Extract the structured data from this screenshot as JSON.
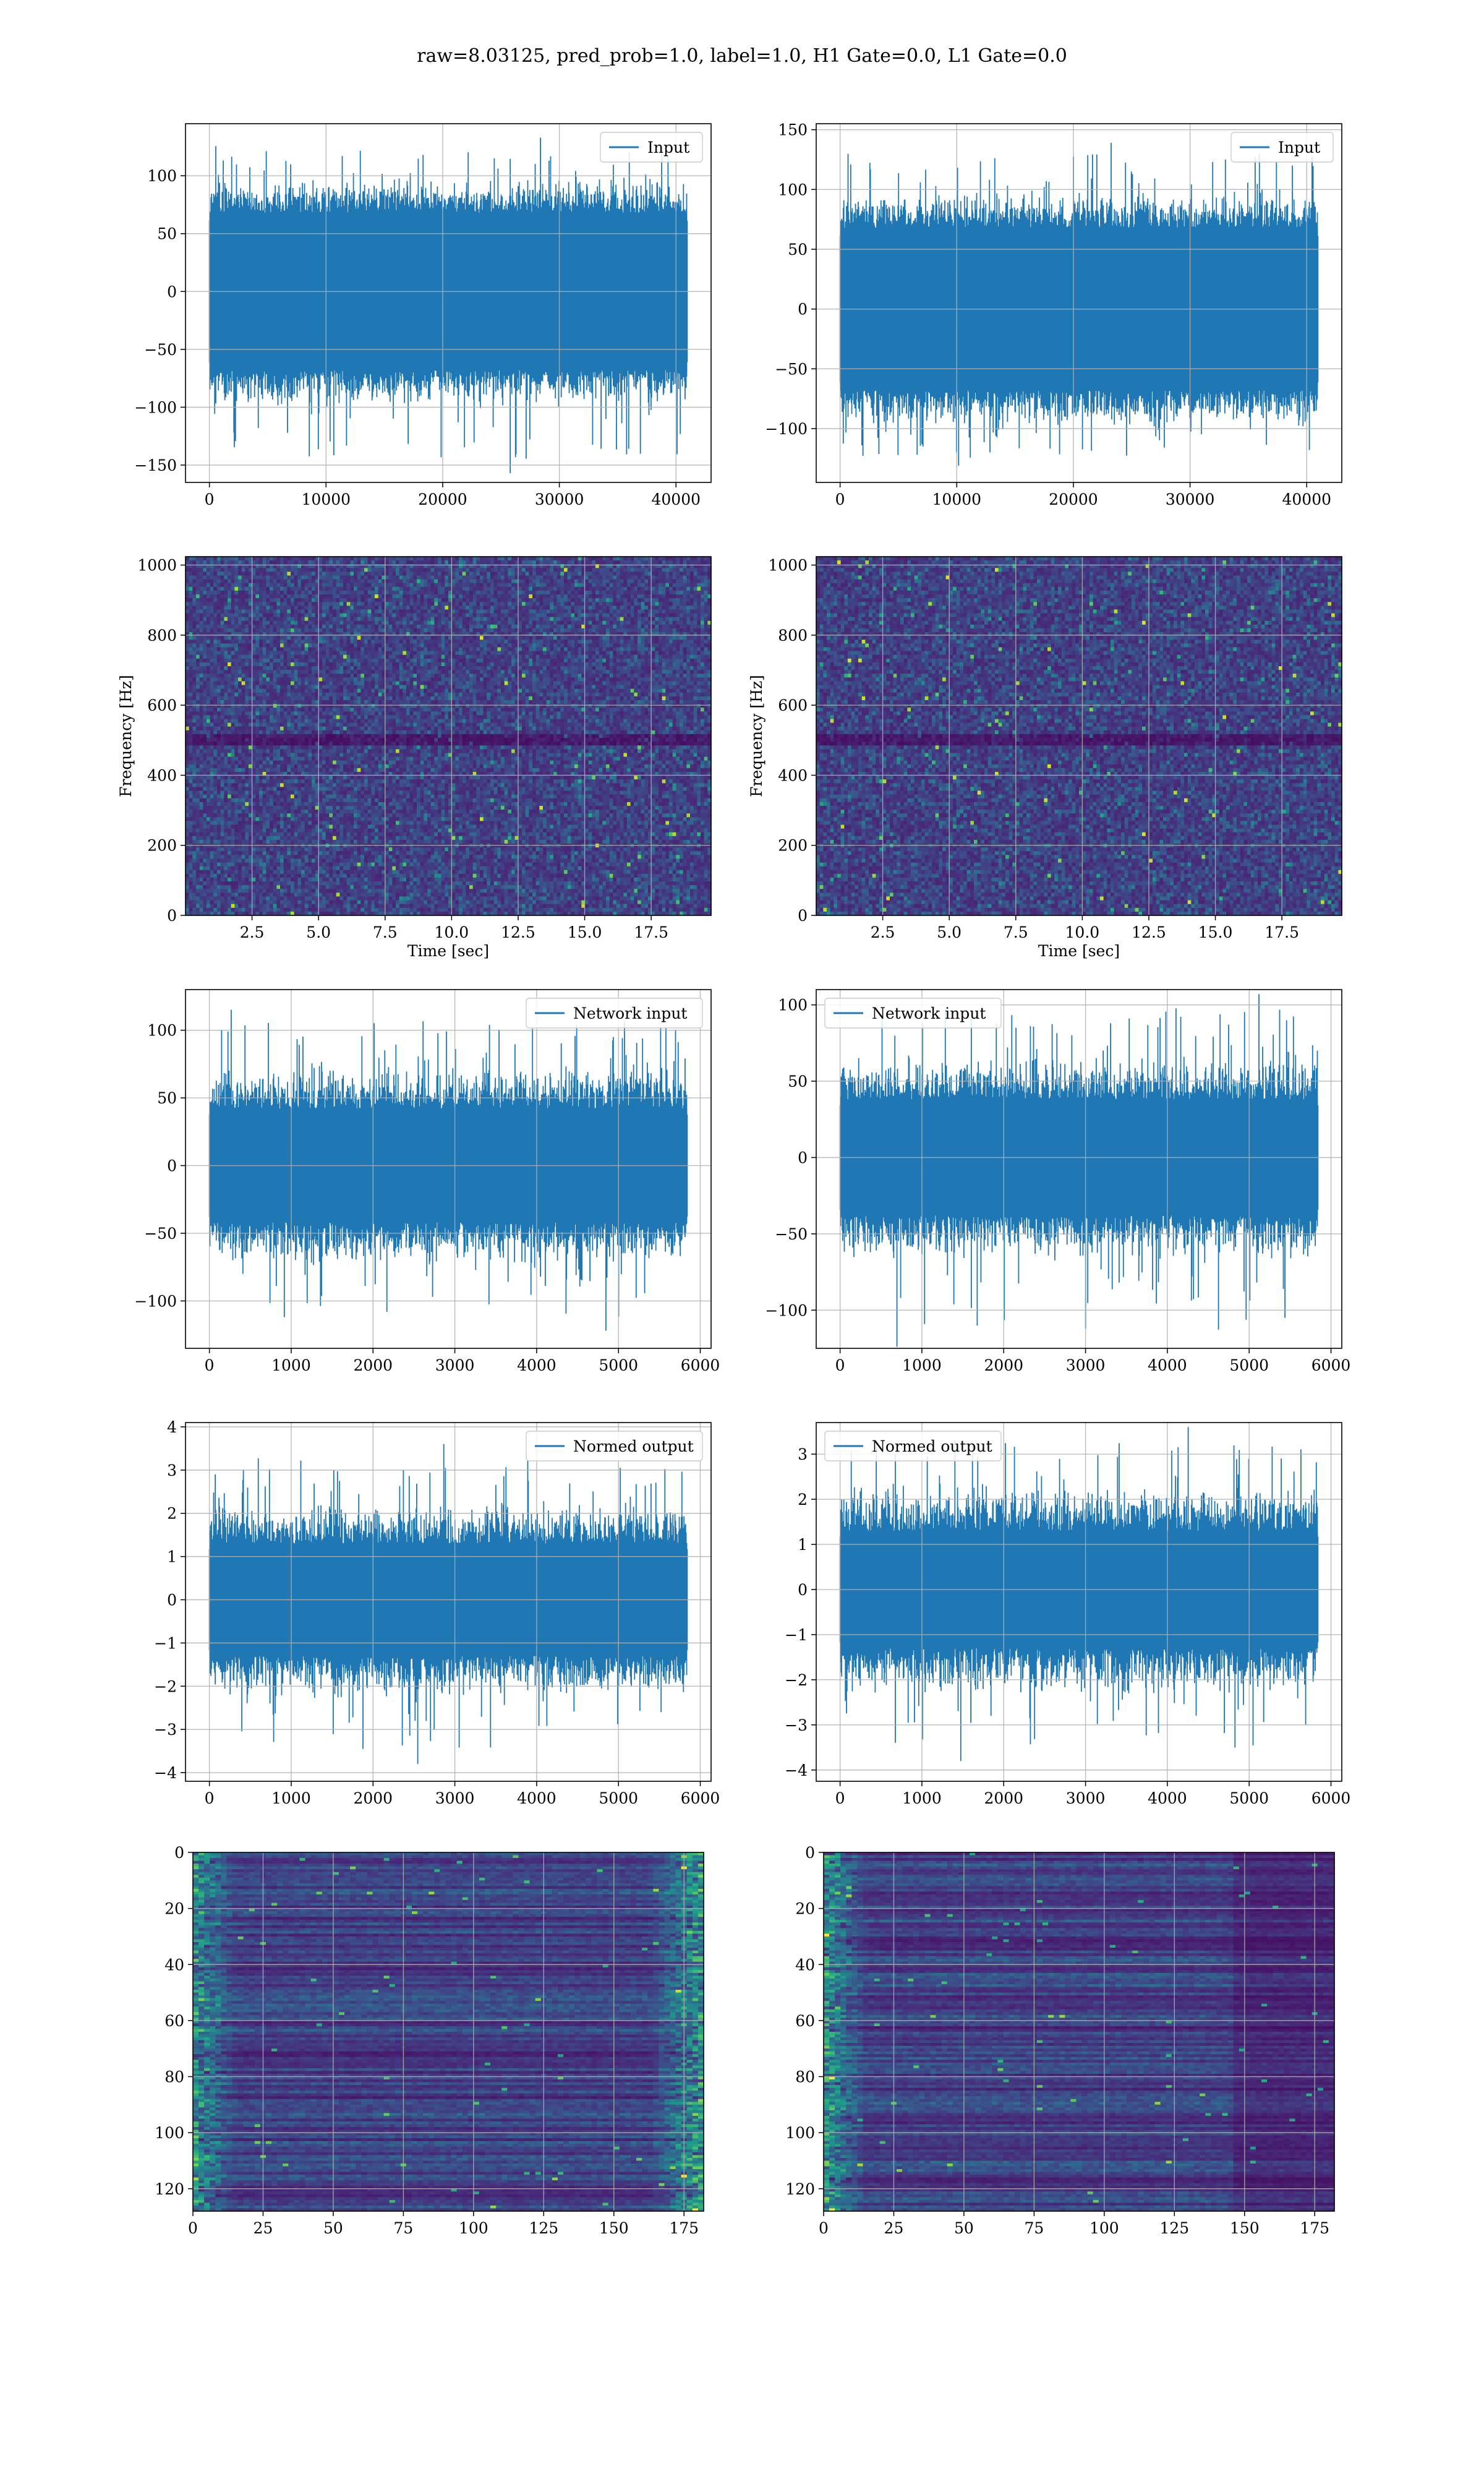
{
  "figure": {
    "title": "raw=8.03125, pred_prob=1.0, label=1.0, H1 Gate=0.0, L1 Gate=0.0"
  },
  "colors": {
    "line": "#1f77b4",
    "grid": "#b0b0b0",
    "viridis": [
      "#440154",
      "#482878",
      "#3e4989",
      "#31688e",
      "#26828e",
      "#1f9e89",
      "#35b779",
      "#6ece58",
      "#b5de2b",
      "#fde725"
    ]
  },
  "chart_data": [
    {
      "id": "h1-input",
      "type": "line",
      "legend": "Input",
      "legend_loc": "upper right",
      "xlim": [
        -2048,
        43008
      ],
      "ylim": [
        -165,
        145
      ],
      "xticks": [
        0,
        10000,
        20000,
        30000,
        40000
      ],
      "yticks": [
        -150,
        -100,
        -50,
        0,
        50,
        100
      ],
      "xlabel": "",
      "ylabel": "",
      "grid": true,
      "series": [
        {
          "x_range": [
            0,
            40960
          ],
          "core_band": [
            -68,
            68
          ],
          "typical_peak": [
            -100,
            100
          ],
          "min": -157,
          "max": 133
        }
      ]
    },
    {
      "id": "l1-input",
      "type": "line",
      "legend": "Input",
      "legend_loc": "upper right",
      "xlim": [
        -2048,
        43008
      ],
      "ylim": [
        -145,
        155
      ],
      "xticks": [
        0,
        10000,
        20000,
        30000,
        40000
      ],
      "yticks": [
        -100,
        -50,
        0,
        50,
        100,
        150
      ],
      "xlabel": "",
      "ylabel": "",
      "grid": true,
      "series": [
        {
          "x_range": [
            0,
            40960
          ],
          "core_band": [
            -68,
            68
          ],
          "typical_peak": [
            -100,
            100
          ],
          "min": -131,
          "max": 139
        }
      ]
    },
    {
      "id": "h1-spectrogram",
      "type": "heatmap",
      "xlabel": "Time [sec]",
      "ylabel": "Frequency [Hz]",
      "xlim": [
        0,
        19.75
      ],
      "ylim": [
        0,
        1024
      ],
      "xticks": [
        2.5,
        5.0,
        7.5,
        10.0,
        12.5,
        15.0,
        17.5
      ],
      "xtick_labels": [
        "2.5",
        "5.0",
        "7.5",
        "10.0",
        "12.5",
        "15.0",
        "17.5"
      ],
      "yticks": [
        0,
        200,
        400,
        600,
        800,
        1000
      ],
      "grid": true,
      "colormap": "viridis",
      "dark_band_hz": [
        490,
        520
      ]
    },
    {
      "id": "l1-spectrogram",
      "type": "heatmap",
      "xlabel": "Time [sec]",
      "ylabel": "Frequency [Hz]",
      "xlim": [
        0,
        19.75
      ],
      "ylim": [
        0,
        1024
      ],
      "xticks": [
        2.5,
        5.0,
        7.5,
        10.0,
        12.5,
        15.0,
        17.5
      ],
      "xtick_labels": [
        "2.5",
        "5.0",
        "7.5",
        "10.0",
        "12.5",
        "15.0",
        "17.5"
      ],
      "yticks": [
        0,
        200,
        400,
        600,
        800,
        1000
      ],
      "grid": true,
      "colormap": "viridis",
      "dark_band_hz": [
        490,
        520
      ]
    },
    {
      "id": "h1-network-input",
      "type": "line",
      "legend": "Network input",
      "legend_loc": "upper right",
      "xlim": [
        -292,
        6132
      ],
      "ylim": [
        -135,
        130
      ],
      "xticks": [
        0,
        1000,
        2000,
        3000,
        4000,
        5000,
        6000
      ],
      "yticks": [
        -100,
        -50,
        0,
        50,
        100
      ],
      "xlabel": "",
      "ylabel": "",
      "grid": true,
      "series": [
        {
          "x_range": [
            0,
            5840
          ],
          "core_band": [
            -42,
            42
          ],
          "typical_peak": [
            -75,
            75
          ],
          "min": -122,
          "max": 115
        }
      ]
    },
    {
      "id": "l1-network-input",
      "type": "line",
      "legend": "Network input",
      "legend_loc": "upper left",
      "xlim": [
        -292,
        6132
      ],
      "ylim": [
        -125,
        110
      ],
      "xticks": [
        0,
        1000,
        2000,
        3000,
        4000,
        5000,
        6000
      ],
      "yticks": [
        -100,
        -50,
        0,
        50,
        100
      ],
      "xlabel": "",
      "ylabel": "",
      "grid": true,
      "series": [
        {
          "x_range": [
            0,
            5840
          ],
          "core_band": [
            -38,
            38
          ],
          "typical_peak": [
            -68,
            68
          ],
          "min": -124,
          "max": 107
        }
      ]
    },
    {
      "id": "h1-normed-output",
      "type": "line",
      "legend": "Normed output",
      "legend_loc": "upper right",
      "xlim": [
        -292,
        6132
      ],
      "ylim": [
        -4.2,
        4.1
      ],
      "xticks": [
        0,
        1000,
        2000,
        3000,
        4000,
        5000,
        6000
      ],
      "yticks": [
        -4,
        -3,
        -2,
        -1,
        0,
        1,
        2,
        3,
        4
      ],
      "xlabel": "",
      "ylabel": "",
      "grid": true,
      "series": [
        {
          "x_range": [
            0,
            5840
          ],
          "core_band": [
            -1.3,
            1.3
          ],
          "typical_peak": [
            -2.3,
            2.3
          ],
          "min": -3.8,
          "max": 3.6
        }
      ]
    },
    {
      "id": "l1-normed-output",
      "type": "line",
      "legend": "Normed output",
      "legend_loc": "upper left",
      "xlim": [
        -292,
        6132
      ],
      "ylim": [
        -4.25,
        3.7
      ],
      "xticks": [
        0,
        1000,
        2000,
        3000,
        4000,
        5000,
        6000
      ],
      "yticks": [
        -4,
        -3,
        -2,
        -1,
        0,
        1,
        2,
        3
      ],
      "xlabel": "",
      "ylabel": "",
      "grid": true,
      "series": [
        {
          "x_range": [
            0,
            5840
          ],
          "core_band": [
            -1.3,
            1.3
          ],
          "typical_peak": [
            -2.4,
            2.4
          ],
          "min": -3.8,
          "max": 3.6
        }
      ]
    },
    {
      "id": "h1-feature-map",
      "type": "heatmap",
      "xlim": [
        0,
        182
      ],
      "ylim": [
        128,
        0
      ],
      "xticks": [
        0,
        25,
        50,
        75,
        100,
        125,
        150,
        175
      ],
      "yticks": [
        0,
        20,
        40,
        60,
        80,
        100,
        120
      ],
      "xlabel": "",
      "ylabel": "",
      "grid": true,
      "colormap": "viridis"
    },
    {
      "id": "l1-feature-map",
      "type": "heatmap",
      "xlim": [
        0,
        182
      ],
      "ylim": [
        128,
        0
      ],
      "xticks": [
        0,
        25,
        50,
        75,
        100,
        125,
        150,
        175
      ],
      "yticks": [
        0,
        20,
        40,
        60,
        80,
        100,
        120
      ],
      "xlabel": "",
      "ylabel": "",
      "grid": true,
      "colormap": "viridis"
    }
  ]
}
